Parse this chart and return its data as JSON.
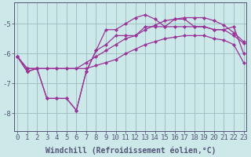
{
  "xlabel": "Windchill (Refroidissement éolien,°C)",
  "bg_color": "#cce8e8",
  "line_color": "#993399",
  "grid_color": "#99bbbb",
  "axis_color": "#555577",
  "x_ticks": [
    0,
    1,
    2,
    3,
    4,
    5,
    6,
    7,
    8,
    9,
    10,
    11,
    12,
    13,
    14,
    15,
    16,
    17,
    18,
    19,
    20,
    21,
    22,
    23
  ],
  "ylim": [
    -8.6,
    -4.3
  ],
  "xlim": [
    -0.3,
    23.3
  ],
  "line1_y": [
    -6.1,
    -6.6,
    -6.5,
    -7.5,
    -7.5,
    -7.5,
    -7.9,
    -6.6,
    -5.9,
    -5.2,
    -5.2,
    -5.0,
    -4.8,
    -4.7,
    -4.85,
    -5.1,
    -4.85,
    -4.85,
    -5.1,
    -5.1,
    -5.2,
    -5.2,
    -5.1,
    -6.0
  ],
  "line2_y": [
    -6.1,
    -6.6,
    -6.5,
    -7.5,
    -7.5,
    -7.5,
    -7.9,
    -6.6,
    -5.9,
    -5.7,
    -5.4,
    -5.4,
    -5.4,
    -5.1,
    -5.1,
    -5.1,
    -5.1,
    -5.1,
    -5.1,
    -5.1,
    -5.2,
    -5.2,
    -5.4,
    -5.65
  ],
  "line3_y": [
    -6.1,
    -6.5,
    -6.5,
    -6.5,
    -6.5,
    -6.5,
    -6.5,
    -6.3,
    -6.1,
    -5.9,
    -5.7,
    -5.5,
    -5.4,
    -5.2,
    -5.05,
    -4.9,
    -4.85,
    -4.8,
    -4.8,
    -4.8,
    -4.9,
    -5.05,
    -5.3,
    -5.6
  ],
  "line4_y": [
    -6.1,
    -6.5,
    -6.5,
    -6.5,
    -6.5,
    -6.5,
    -6.5,
    -6.5,
    -6.4,
    -6.3,
    -6.2,
    -6.0,
    -5.85,
    -5.7,
    -5.6,
    -5.5,
    -5.45,
    -5.4,
    -5.4,
    -5.4,
    -5.5,
    -5.55,
    -5.7,
    -6.3
  ],
  "yticks": [
    -8,
    -7,
    -6,
    -5
  ],
  "tick_fontsize": 6.5,
  "label_fontsize": 7,
  "linewidth": 0.9,
  "markersize": 2.2
}
